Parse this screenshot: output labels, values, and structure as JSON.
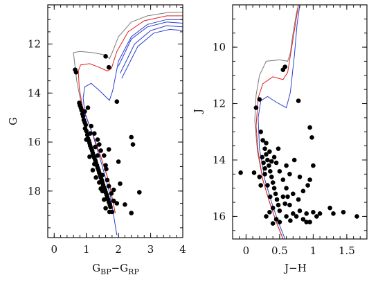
{
  "chart_data": [
    {
      "type": "scatter",
      "title": "",
      "xlabel": {
        "base": "G",
        "sub1": "BP",
        "mid": "−G",
        "sub2": "RP"
      },
      "ylabel": "G",
      "xlim": [
        -0.2,
        4.0
      ],
      "ylim": [
        19.9,
        10.4
      ],
      "y_inverted": true,
      "xticks": [
        0,
        1,
        2,
        3,
        4
      ],
      "yticks": [
        12,
        14,
        16,
        18
      ],
      "grid": false,
      "stars": [
        [
          0.65,
          13.05
        ],
        [
          0.68,
          13.15
        ],
        [
          1.6,
          12.5
        ],
        [
          1.7,
          12.95
        ],
        [
          1.95,
          14.35
        ],
        [
          0.78,
          14.4
        ],
        [
          0.8,
          14.5
        ],
        [
          0.83,
          14.6
        ],
        [
          0.85,
          14.7
        ],
        [
          0.88,
          14.85
        ],
        [
          0.9,
          14.95
        ],
        [
          0.92,
          15.1
        ],
        [
          0.95,
          15.2
        ],
        [
          0.98,
          15.3
        ],
        [
          0.96,
          15.45
        ],
        [
          1.0,
          15.55
        ],
        [
          1.03,
          15.7
        ],
        [
          1.05,
          15.85
        ],
        [
          1.08,
          15.95
        ],
        [
          1.1,
          16.05
        ],
        [
          1.12,
          16.15
        ],
        [
          1.15,
          16.25
        ],
        [
          1.18,
          16.35
        ],
        [
          1.2,
          16.45
        ],
        [
          1.22,
          16.55
        ],
        [
          1.25,
          16.65
        ],
        [
          1.28,
          16.75
        ],
        [
          1.3,
          16.85
        ],
        [
          1.33,
          16.95
        ],
        [
          1.35,
          17.05
        ],
        [
          1.38,
          17.15
        ],
        [
          1.4,
          17.25
        ],
        [
          1.43,
          17.35
        ],
        [
          1.45,
          17.45
        ],
        [
          1.48,
          17.55
        ],
        [
          1.5,
          17.65
        ],
        [
          1.52,
          17.75
        ],
        [
          1.55,
          17.85
        ],
        [
          1.58,
          17.95
        ],
        [
          1.6,
          18.05
        ],
        [
          1.63,
          18.15
        ],
        [
          1.65,
          18.25
        ],
        [
          1.68,
          18.35
        ],
        [
          1.7,
          18.45
        ],
        [
          1.73,
          18.55
        ],
        [
          1.75,
          18.65
        ],
        [
          1.72,
          18.85
        ],
        [
          0.95,
          14.75
        ],
        [
          1.05,
          14.6
        ],
        [
          1.15,
          15.35
        ],
        [
          1.25,
          15.65
        ],
        [
          1.35,
          15.9
        ],
        [
          1.4,
          16.1
        ],
        [
          1.45,
          16.35
        ],
        [
          1.55,
          16.55
        ],
        [
          1.6,
          16.95
        ],
        [
          1.2,
          17.15
        ],
        [
          1.3,
          17.45
        ],
        [
          1.5,
          17.35
        ],
        [
          1.65,
          17.55
        ],
        [
          1.7,
          17.8
        ],
        [
          1.78,
          18.1
        ],
        [
          1.85,
          18.4
        ],
        [
          1.6,
          18.7
        ],
        [
          1.95,
          18.5
        ],
        [
          2.2,
          18.55
        ],
        [
          1.5,
          18.0
        ],
        [
          1.35,
          16.55
        ],
        [
          2.0,
          16.8
        ],
        [
          2.05,
          17.7
        ],
        [
          2.4,
          15.8
        ],
        [
          2.45,
          16.1
        ],
        [
          2.65,
          18.05
        ],
        [
          2.4,
          18.9
        ],
        [
          1.1,
          16.6
        ],
        [
          1.25,
          16.9
        ],
        [
          1.4,
          17.65
        ],
        [
          1.55,
          18.35
        ],
        [
          1.62,
          17.1
        ],
        [
          1.7,
          16.3
        ],
        [
          1.0,
          15.9
        ],
        [
          1.12,
          15.65
        ],
        [
          1.28,
          16.2
        ],
        [
          1.45,
          17.9
        ],
        [
          1.8,
          18.85
        ],
        [
          1.85,
          17.95
        ]
      ],
      "isochrones": [
        {
          "color": "#7a7a7a",
          "points": [
            [
              1.9,
              18.9
            ],
            [
              1.7,
              17.6
            ],
            [
              1.45,
              16.6
            ],
            [
              1.15,
              15.5
            ],
            [
              0.85,
              14.5
            ],
            [
              0.7,
              13.5
            ],
            [
              0.62,
              12.6
            ],
            [
              0.6,
              12.35
            ],
            [
              0.8,
              12.3
            ],
            [
              1.2,
              12.35
            ],
            [
              1.6,
              12.45
            ],
            [
              1.72,
              12.6
            ],
            [
              1.82,
              12.3
            ],
            [
              2.0,
              11.7
            ],
            [
              2.4,
              11.1
            ],
            [
              2.9,
              10.85
            ],
            [
              3.6,
              10.7
            ],
            [
              4.0,
              10.7
            ]
          ]
        },
        {
          "color": "#e02020",
          "points": [
            [
              1.9,
              18.9
            ],
            [
              1.7,
              17.6
            ],
            [
              1.45,
              16.6
            ],
            [
              1.15,
              15.5
            ],
            [
              0.88,
              14.55
            ],
            [
              0.78,
              13.8
            ],
            [
              0.75,
              13.1
            ],
            [
              0.82,
              12.85
            ],
            [
              1.1,
              12.8
            ],
            [
              1.4,
              12.95
            ],
            [
              1.65,
              13.1
            ],
            [
              1.78,
              13.0
            ],
            [
              1.95,
              12.3
            ],
            [
              2.3,
              11.5
            ],
            [
              2.8,
              11.05
            ],
            [
              3.5,
              10.85
            ],
            [
              4.0,
              10.85
            ]
          ]
        },
        {
          "color": "#2a3fd0",
          "points": [
            [
              1.95,
              19.8
            ],
            [
              1.75,
              18.2
            ],
            [
              1.5,
              17.0
            ],
            [
              1.2,
              15.7
            ],
            [
              0.95,
              14.8
            ],
            [
              0.9,
              14.2
            ],
            [
              0.95,
              13.75
            ],
            [
              1.15,
              13.6
            ],
            [
              1.45,
              13.95
            ],
            [
              1.72,
              14.3
            ],
            [
              1.82,
              13.9
            ],
            [
              2.0,
              12.7
            ],
            [
              2.4,
              11.7
            ],
            [
              2.9,
              11.2
            ],
            [
              3.5,
              11.0
            ],
            [
              4.0,
              11.0
            ]
          ]
        },
        {
          "color": "#2a3fd0",
          "points": [
            [
              2.0,
              12.9
            ],
            [
              2.4,
              11.8
            ],
            [
              2.9,
              11.3
            ],
            [
              3.5,
              11.1
            ],
            [
              4.0,
              11.15
            ]
          ]
        },
        {
          "color": "#2a3fd0",
          "points": [
            [
              2.05,
              13.2
            ],
            [
              2.5,
              12.0
            ],
            [
              3.0,
              11.45
            ],
            [
              3.5,
              11.25
            ],
            [
              4.0,
              11.3
            ]
          ]
        },
        {
          "color": "#2a3fd0",
          "points": [
            [
              2.1,
              13.4
            ],
            [
              2.6,
              12.1
            ],
            [
              3.1,
              11.55
            ],
            [
              3.6,
              11.4
            ],
            [
              4.0,
              11.45
            ]
          ]
        }
      ]
    },
    {
      "type": "scatter",
      "title": "",
      "xlabel": "J−H",
      "ylabel": "J",
      "xlim": [
        -0.2,
        1.8
      ],
      "ylim": [
        16.8,
        8.5
      ],
      "y_inverted": true,
      "xticks": [
        0,
        0.5,
        1,
        1.5
      ],
      "xtick_labels": [
        "0",
        "0.5",
        "1",
        "1.5"
      ],
      "yticks": [
        10,
        12,
        14,
        16
      ],
      "grid": false,
      "stars": [
        [
          0.15,
          12.15
        ],
        [
          0.2,
          11.85
        ],
        [
          0.55,
          10.8
        ],
        [
          0.58,
          10.7
        ],
        [
          0.78,
          11.9
        ],
        [
          0.95,
          12.85
        ],
        [
          0.98,
          13.2
        ],
        [
          0.22,
          13.0
        ],
        [
          0.25,
          13.3
        ],
        [
          0.28,
          13.6
        ],
        [
          0.3,
          13.8
        ],
        [
          0.32,
          14.0
        ],
        [
          0.34,
          14.2
        ],
        [
          0.36,
          14.4
        ],
        [
          0.38,
          14.6
        ],
        [
          0.4,
          14.8
        ],
        [
          0.42,
          15.0
        ],
        [
          0.44,
          15.2
        ],
        [
          0.46,
          15.4
        ],
        [
          0.48,
          15.6
        ],
        [
          0.5,
          15.8
        ],
        [
          0.3,
          13.4
        ],
        [
          0.35,
          13.7
        ],
        [
          0.26,
          14.1
        ],
        [
          0.28,
          14.5
        ],
        [
          0.32,
          14.9
        ],
        [
          0.36,
          15.3
        ],
        [
          0.4,
          15.7
        ],
        [
          0.45,
          14.1
        ],
        [
          0.5,
          14.4
        ],
        [
          0.55,
          14.7
        ],
        [
          0.6,
          15.0
        ],
        [
          0.62,
          15.3
        ],
        [
          0.65,
          15.6
        ],
        [
          0.7,
          15.9
        ],
        [
          0.75,
          16.0
        ],
        [
          0.8,
          15.8
        ],
        [
          0.85,
          16.1
        ],
        [
          0.9,
          15.9
        ],
        [
          0.95,
          16.2
        ],
        [
          1.05,
          16.0
        ],
        [
          1.1,
          15.9
        ],
        [
          1.25,
          15.7
        ],
        [
          1.3,
          15.9
        ],
        [
          1.45,
          15.85
        ],
        [
          1.65,
          16.0
        ],
        [
          0.12,
          14.45
        ],
        [
          -0.08,
          14.45
        ],
        [
          0.2,
          14.6
        ],
        [
          0.22,
          14.9
        ],
        [
          0.6,
          14.2
        ],
        [
          0.72,
          14.0
        ],
        [
          0.8,
          14.6
        ],
        [
          0.85,
          15.1
        ],
        [
          0.92,
          14.9
        ],
        [
          0.78,
          15.4
        ],
        [
          0.65,
          14.5
        ],
        [
          0.55,
          15.3
        ],
        [
          0.6,
          16.0
        ],
        [
          0.5,
          16.2
        ],
        [
          0.45,
          16.1
        ],
        [
          0.4,
          16.25
        ],
        [
          1.0,
          14.2
        ],
        [
          0.95,
          14.7
        ],
        [
          0.7,
          15.2
        ],
        [
          0.42,
          13.9
        ],
        [
          0.38,
          14.05
        ],
        [
          0.48,
          13.6
        ],
        [
          0.3,
          16.0
        ],
        [
          0.35,
          15.85
        ],
        [
          0.9,
          16.2
        ],
        [
          1.0,
          15.85
        ],
        [
          0.58,
          15.55
        ],
        [
          0.66,
          16.15
        ],
        [
          0.24,
          13.9
        ],
        [
          0.28,
          14.3
        ]
      ],
      "isochrones": [
        {
          "color": "#7a7a7a",
          "points": [
            [
              0.55,
              16.8
            ],
            [
              0.45,
              16.2
            ],
            [
              0.35,
              15.5
            ],
            [
              0.25,
              14.7
            ],
            [
              0.17,
              13.7
            ],
            [
              0.13,
              12.6
            ],
            [
              0.15,
              11.7
            ],
            [
              0.2,
              11.0
            ],
            [
              0.3,
              10.5
            ],
            [
              0.5,
              10.45
            ],
            [
              0.62,
              10.5
            ],
            [
              0.66,
              10.2
            ],
            [
              0.7,
              9.5
            ],
            [
              0.75,
              8.8
            ],
            [
              0.78,
              8.5
            ]
          ]
        },
        {
          "color": "#e02020",
          "points": [
            [
              0.55,
              16.8
            ],
            [
              0.45,
              16.2
            ],
            [
              0.35,
              15.5
            ],
            [
              0.25,
              14.7
            ],
            [
              0.18,
              13.7
            ],
            [
              0.15,
              12.8
            ],
            [
              0.18,
              11.8
            ],
            [
              0.25,
              11.3
            ],
            [
              0.4,
              11.05
            ],
            [
              0.55,
              11.15
            ],
            [
              0.62,
              10.9
            ],
            [
              0.68,
              10.0
            ],
            [
              0.74,
              9.1
            ],
            [
              0.78,
              8.5
            ]
          ]
        },
        {
          "color": "#2a3fd0",
          "points": [
            [
              0.58,
              16.8
            ],
            [
              0.48,
              16.2
            ],
            [
              0.38,
              15.5
            ],
            [
              0.28,
              14.7
            ],
            [
              0.2,
              13.6
            ],
            [
              0.18,
              12.5
            ],
            [
              0.22,
              11.9
            ],
            [
              0.32,
              11.75
            ],
            [
              0.45,
              11.95
            ],
            [
              0.6,
              12.15
            ],
            [
              0.66,
              11.6
            ],
            [
              0.72,
              10.3
            ],
            [
              0.76,
              9.2
            ],
            [
              0.8,
              8.5
            ]
          ]
        }
      ]
    }
  ]
}
